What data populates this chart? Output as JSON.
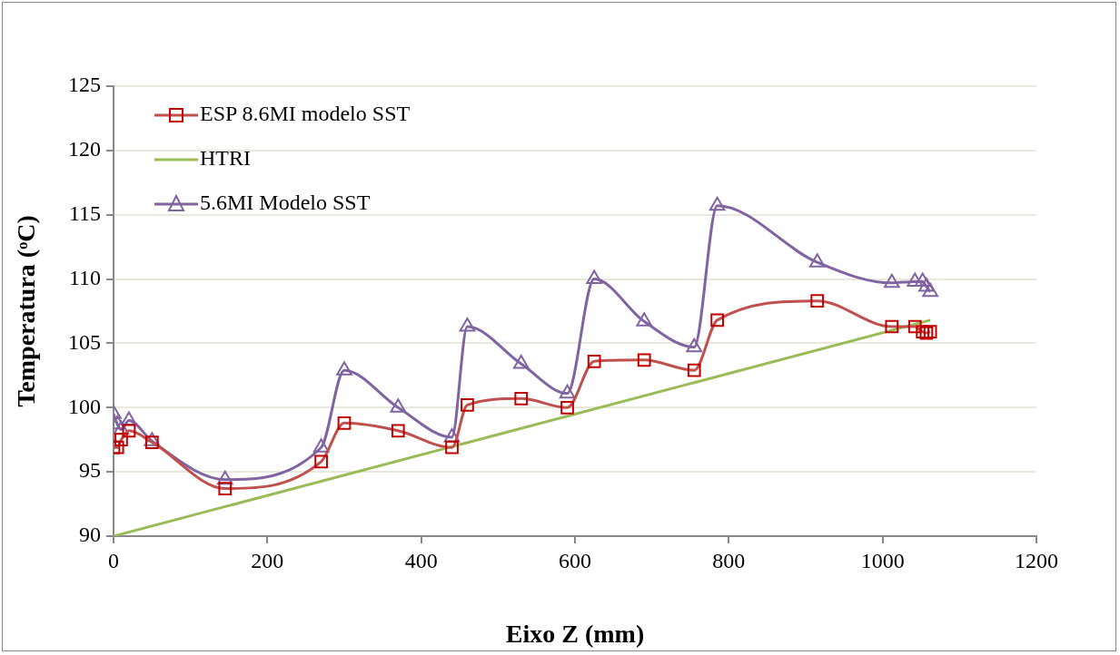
{
  "chart_data": {
    "type": "line",
    "xlabel": "Eixo Z (mm)",
    "ylabel": "Temperatura (ᵒC)",
    "xlim": [
      0,
      1200
    ],
    "xticks": [
      0,
      200,
      400,
      600,
      800,
      1000,
      1200
    ],
    "ylim": [
      90,
      125
    ],
    "yticks": [
      90,
      95,
      100,
      105,
      110,
      115,
      120,
      125
    ],
    "grid": "y",
    "legend": "top left",
    "line_style": "solid",
    "series": [
      {
        "name": "ESP 8.6MI modelo SST",
        "color": "#c0504d",
        "marker": "square",
        "x": [
          0,
          5,
          10,
          20,
          50,
          145,
          270,
          300,
          370,
          440,
          460,
          530,
          590,
          625,
          690,
          755,
          785,
          915,
          1012,
          1042,
          1052,
          1057,
          1062
        ],
        "values": [
          96.9,
          96.9,
          97.5,
          98.2,
          97.3,
          93.7,
          95.8,
          98.8,
          98.2,
          96.9,
          100.2,
          100.7,
          100.0,
          103.6,
          103.7,
          102.9,
          106.8,
          108.3,
          106.3,
          106.3,
          105.9,
          105.8,
          105.9
        ]
      },
      {
        "name": "HTRI",
        "color": "#9bbb59",
        "marker": "none",
        "x": [
          0,
          1062
        ],
        "values": [
          90,
          106.8
        ]
      },
      {
        "name": "5.6MI Modelo SST",
        "color": "#8064a2",
        "marker": "triangle",
        "x": [
          0,
          5,
          10,
          20,
          50,
          145,
          270,
          300,
          370,
          440,
          460,
          530,
          590,
          625,
          690,
          755,
          785,
          915,
          1012,
          1042,
          1052,
          1057,
          1062
        ],
        "values": [
          99.5,
          98.7,
          98.3,
          99.0,
          97.4,
          94.4,
          96.9,
          102.9,
          100.0,
          97.7,
          106.3,
          103.4,
          101.1,
          110.0,
          106.7,
          104.7,
          115.7,
          111.3,
          109.7,
          109.8,
          109.8,
          109.4,
          109.0
        ]
      }
    ]
  }
}
